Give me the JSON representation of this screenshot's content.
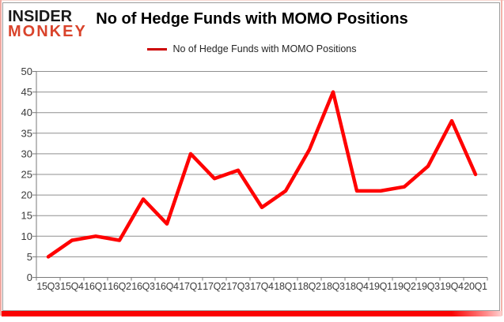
{
  "logo": {
    "line1": "INSIDER",
    "line2": "MONKEY",
    "line1_color": "#1a1a1a",
    "line2_color": "#d9432b"
  },
  "chart_data": {
    "type": "line",
    "title": "No of Hedge Funds with MOMO Positions",
    "legend": "No of Hedge Funds with MOMO Positions",
    "legend_position": "top-center",
    "categories": [
      "15Q3",
      "15Q4",
      "16Q1",
      "16Q2",
      "16Q3",
      "16Q4",
      "17Q1",
      "17Q2",
      "17Q3",
      "17Q4",
      "18Q1",
      "18Q2",
      "18Q3",
      "18Q4",
      "19Q1",
      "19Q2",
      "19Q3",
      "19Q4",
      "20Q1"
    ],
    "series": [
      {
        "name": "No of Hedge Funds with MOMO Positions",
        "color": "#ff0000",
        "values": [
          5,
          9,
          10,
          9,
          19,
          13,
          30,
          24,
          26,
          17,
          21,
          31,
          45,
          21,
          21,
          22,
          27,
          38,
          25
        ]
      }
    ],
    "xlabel": "",
    "ylabel": "",
    "ylim": [
      0,
      50
    ],
    "y_ticks": [
      0,
      5,
      10,
      15,
      20,
      25,
      30,
      35,
      40,
      45,
      50
    ],
    "grid": true,
    "grid_color": "#8f8f8f",
    "axis_color": "#7a7a7a",
    "legend_key_color": "#cc0000",
    "accent_bar_color": "#fa0202"
  }
}
